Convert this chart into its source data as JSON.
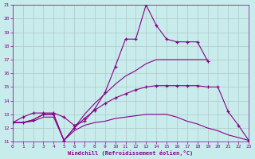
{
  "bg_color": "#c8ecec",
  "line_color": "#880088",
  "grid_color": "#b0c8c8",
  "xlabel": "Windchill (Refroidissement éolien,°C)",
  "xlim": [
    0,
    23
  ],
  "ylim": [
    11,
    21
  ],
  "xticks": [
    0,
    1,
    2,
    3,
    4,
    5,
    6,
    7,
    8,
    9,
    10,
    11,
    12,
    13,
    14,
    15,
    16,
    17,
    18,
    19,
    20,
    21,
    22,
    23
  ],
  "yticks": [
    11,
    12,
    13,
    14,
    15,
    16,
    17,
    18,
    19,
    20,
    21
  ],
  "lines": [
    {
      "x": [
        0,
        1,
        2,
        3,
        4,
        5,
        6,
        7,
        8,
        9,
        10,
        11,
        12,
        13,
        14,
        15,
        16,
        17,
        18,
        19
      ],
      "y": [
        12.4,
        12.8,
        13.1,
        13.1,
        13.1,
        12.8,
        12.2,
        12.5,
        13.4,
        14.6,
        16.5,
        18.5,
        18.5,
        21.0,
        19.5,
        18.5,
        18.3,
        18.3,
        18.3,
        16.9
      ],
      "marker": true
    },
    {
      "x": [
        0,
        1,
        2,
        3,
        4,
        5,
        6,
        7,
        8,
        9,
        10,
        11,
        12,
        13,
        14,
        15,
        16,
        17,
        18,
        19
      ],
      "y": [
        12.4,
        12.4,
        12.6,
        13.0,
        13.0,
        11.1,
        12.0,
        13.0,
        13.8,
        14.5,
        15.2,
        15.8,
        16.2,
        16.7,
        17.0,
        17.0,
        17.0,
        17.0,
        17.0,
        17.0
      ],
      "marker": false
    },
    {
      "x": [
        0,
        1,
        2,
        3,
        4,
        5,
        6,
        7,
        8,
        9,
        10,
        11,
        12,
        13,
        14,
        15,
        16,
        17,
        18,
        19,
        20,
        21,
        22,
        23
      ],
      "y": [
        12.4,
        12.4,
        12.6,
        13.0,
        13.0,
        11.1,
        12.0,
        12.7,
        13.3,
        13.8,
        14.2,
        14.5,
        14.8,
        15.0,
        15.1,
        15.1,
        15.1,
        15.1,
        15.1,
        15.0,
        15.0,
        13.2,
        12.2,
        11.1
      ],
      "marker": true
    },
    {
      "x": [
        0,
        1,
        2,
        3,
        4,
        5,
        6,
        7,
        8,
        9,
        10,
        11,
        12,
        13,
        14,
        15,
        16,
        17,
        18,
        19,
        20,
        21,
        22,
        23
      ],
      "y": [
        12.4,
        12.4,
        12.5,
        12.8,
        12.8,
        11.1,
        11.8,
        12.2,
        12.4,
        12.5,
        12.7,
        12.8,
        12.9,
        13.0,
        13.0,
        13.0,
        12.8,
        12.5,
        12.3,
        12.0,
        11.8,
        11.5,
        11.3,
        11.1
      ],
      "marker": false
    }
  ]
}
